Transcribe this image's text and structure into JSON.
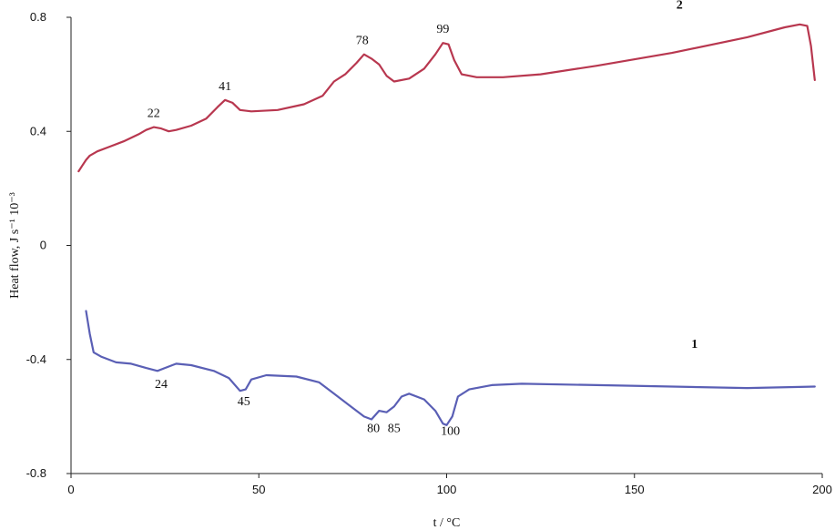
{
  "chart_data": {
    "type": "line",
    "xlabel": "t / °C",
    "ylabel": "Heat flow,  J s⁻¹ 10⁻³",
    "xlim": [
      0,
      200
    ],
    "ylim": [
      -0.8,
      0.8
    ],
    "xticks": [
      0,
      50,
      100,
      150,
      200
    ],
    "yticks": [
      -0.8,
      -0.4,
      0,
      0.4,
      0.8
    ],
    "grid": false,
    "series": [
      {
        "name": "2",
        "color": "#b8374f",
        "points": [
          [
            2,
            0.26
          ],
          [
            3,
            0.28
          ],
          [
            4,
            0.3
          ],
          [
            5,
            0.315
          ],
          [
            7,
            0.33
          ],
          [
            10,
            0.345
          ],
          [
            14,
            0.365
          ],
          [
            18,
            0.39
          ],
          [
            20,
            0.405
          ],
          [
            22,
            0.415
          ],
          [
            24,
            0.41
          ],
          [
            26,
            0.4
          ],
          [
            28,
            0.405
          ],
          [
            32,
            0.42
          ],
          [
            36,
            0.445
          ],
          [
            39,
            0.485
          ],
          [
            41,
            0.51
          ],
          [
            43,
            0.5
          ],
          [
            45,
            0.475
          ],
          [
            48,
            0.47
          ],
          [
            55,
            0.475
          ],
          [
            62,
            0.495
          ],
          [
            67,
            0.525
          ],
          [
            70,
            0.575
          ],
          [
            73,
            0.6
          ],
          [
            76,
            0.64
          ],
          [
            78,
            0.67
          ],
          [
            80,
            0.655
          ],
          [
            82,
            0.635
          ],
          [
            84,
            0.595
          ],
          [
            86,
            0.575
          ],
          [
            90,
            0.585
          ],
          [
            94,
            0.62
          ],
          [
            97,
            0.67
          ],
          [
            99,
            0.71
          ],
          [
            100.5,
            0.705
          ],
          [
            102,
            0.65
          ],
          [
            104,
            0.6
          ],
          [
            108,
            0.59
          ],
          [
            115,
            0.59
          ],
          [
            125,
            0.6
          ],
          [
            140,
            0.63
          ],
          [
            160,
            0.675
          ],
          [
            180,
            0.73
          ],
          [
            190,
            0.765
          ],
          [
            194,
            0.775
          ],
          [
            196,
            0.77
          ],
          [
            197,
            0.7
          ],
          [
            198,
            0.58
          ]
        ]
      },
      {
        "name": "1",
        "color": "#5a5fb5",
        "points": [
          [
            4,
            -0.23
          ],
          [
            5,
            -0.31
          ],
          [
            6,
            -0.375
          ],
          [
            8,
            -0.39
          ],
          [
            12,
            -0.41
          ],
          [
            16,
            -0.415
          ],
          [
            20,
            -0.43
          ],
          [
            23,
            -0.44
          ],
          [
            25,
            -0.43
          ],
          [
            28,
            -0.415
          ],
          [
            32,
            -0.42
          ],
          [
            38,
            -0.44
          ],
          [
            42,
            -0.465
          ],
          [
            45,
            -0.51
          ],
          [
            46.5,
            -0.505
          ],
          [
            48,
            -0.47
          ],
          [
            52,
            -0.455
          ],
          [
            60,
            -0.46
          ],
          [
            66,
            -0.48
          ],
          [
            70,
            -0.52
          ],
          [
            74,
            -0.56
          ],
          [
            78,
            -0.6
          ],
          [
            80,
            -0.61
          ],
          [
            82,
            -0.58
          ],
          [
            84,
            -0.585
          ],
          [
            86,
            -0.565
          ],
          [
            88,
            -0.53
          ],
          [
            90,
            -0.52
          ],
          [
            94,
            -0.54
          ],
          [
            97,
            -0.58
          ],
          [
            99,
            -0.625
          ],
          [
            100,
            -0.63
          ],
          [
            101.5,
            -0.6
          ],
          [
            103,
            -0.53
          ],
          [
            106,
            -0.505
          ],
          [
            112,
            -0.49
          ],
          [
            120,
            -0.485
          ],
          [
            140,
            -0.49
          ],
          [
            160,
            -0.495
          ],
          [
            180,
            -0.5
          ],
          [
            198,
            -0.495
          ]
        ]
      }
    ],
    "series_labels": [
      {
        "text": "2",
        "x": 162,
        "y": 0.83
      },
      {
        "text": "1",
        "x": 166,
        "y": -0.36
      }
    ],
    "annotations": [
      {
        "text": "22",
        "x": 22,
        "y": 0.45
      },
      {
        "text": "41",
        "x": 41,
        "y": 0.545
      },
      {
        "text": "78",
        "x": 77.5,
        "y": 0.705
      },
      {
        "text": "99",
        "x": 99,
        "y": 0.745
      },
      {
        "text": "24",
        "x": 24,
        "y": -0.5
      },
      {
        "text": "45",
        "x": 46,
        "y": -0.56
      },
      {
        "text": "80",
        "x": 80.5,
        "y": -0.655
      },
      {
        "text": "85",
        "x": 86,
        "y": -0.655
      },
      {
        "text": "100",
        "x": 101,
        "y": -0.665
      }
    ]
  }
}
